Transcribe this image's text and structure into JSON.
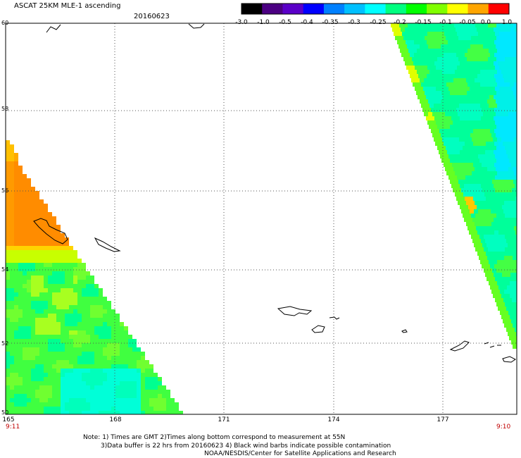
{
  "header": {
    "title": "ASCAT 25KM MLE-1 ascending",
    "date": "20160623"
  },
  "colorbar": {
    "labels": [
      "-3.0",
      "-1.0",
      "-0.5",
      "-0.4",
      "-0.35",
      "-0.3",
      "-0.25",
      "-0.2",
      "-0.15",
      "-0.1",
      "-0.05",
      "0.0",
      "1.0"
    ],
    "colors": [
      "#000000",
      "#4b0082",
      "#5a00c8",
      "#0000ff",
      "#0080ff",
      "#00c0ff",
      "#00ffff",
      "#00ff80",
      "#00ff00",
      "#80ff00",
      "#ffff00",
      "#ffa500",
      "#ff0000"
    ]
  },
  "map": {
    "lat_labels": [
      "60",
      "58",
      "56",
      "54",
      "52",
      "50"
    ],
    "lat_values": [
      60,
      58,
      56,
      54,
      52,
      50
    ],
    "lon_labels": [
      "165",
      "168",
      "171",
      "174",
      "177"
    ],
    "lon_values": [
      165,
      168,
      171,
      174,
      177
    ],
    "lon_range": [
      165,
      179
    ],
    "lat_range": [
      50,
      60
    ],
    "grid": true
  },
  "times": {
    "left": "9:11",
    "right": "9:10"
  },
  "notes": {
    "line1": "Note: 1) Times are GMT 2)Times along bottom correspond to measurement at 55N",
    "line2": "3)Data buffer is 22 hrs from 20160623 4) Black wind barbs indicate possible contamination",
    "line3": "NOAA/NESDIS/Center for Satellite Applications and Research"
  }
}
